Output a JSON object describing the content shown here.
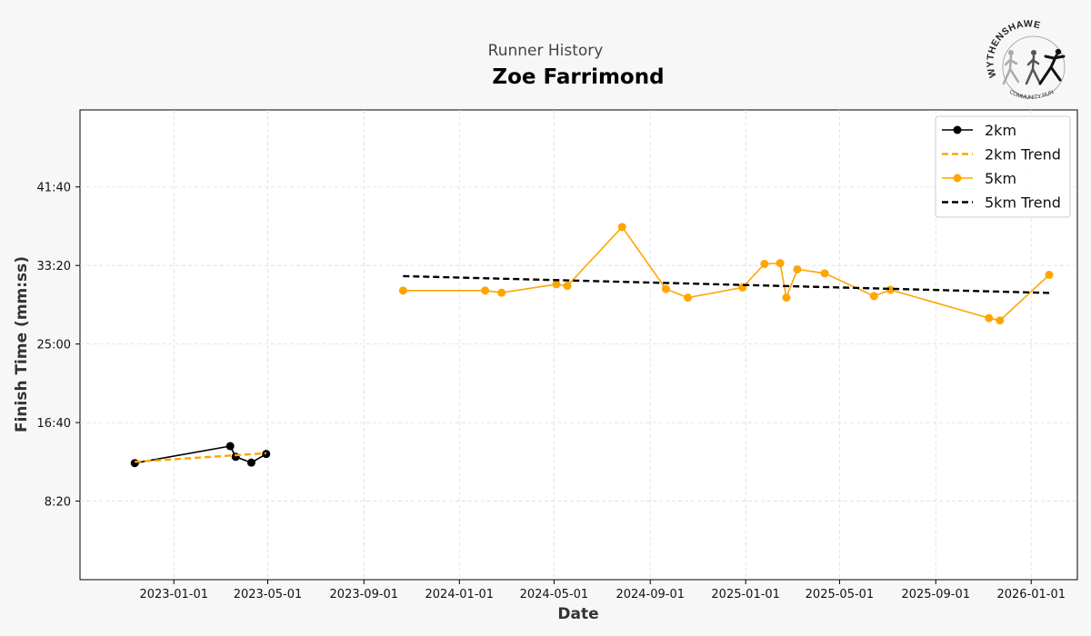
{
  "header": {
    "subtitle": "Runner History",
    "title": "Zoe Farrimond"
  },
  "logo": {
    "top_text": "WYTHENSHAWE",
    "bottom_text": "COMMUNITY RUN"
  },
  "colors": {
    "run_2km": "#000000",
    "run_5km": "#ffa500",
    "background": "#f7f7f7",
    "grid": "#dddddd"
  },
  "chart_data": {
    "type": "line",
    "title": "Zoe Farrimond",
    "subtitle": "Runner History",
    "xlabel": "Date",
    "ylabel": "Finish Time (mm:ss)",
    "x_ticks": [
      "2023-01-01",
      "2023-05-01",
      "2023-09-01",
      "2024-01-01",
      "2024-05-01",
      "2024-09-01",
      "2025-01-01",
      "2025-05-01",
      "2025-09-01",
      "2026-01-01"
    ],
    "y_ticks": [
      "8:20",
      "16:40",
      "25:00",
      "33:20",
      "41:40"
    ],
    "y_tick_seconds": [
      500,
      1000,
      1500,
      2000,
      2500
    ],
    "xlim": [
      "2022-09-03",
      "2026-03-01"
    ],
    "ylim_seconds": [
      0,
      2990
    ],
    "grid": true,
    "legend_position": "top-right",
    "series": [
      {
        "name": "2km",
        "style": "solid-markers",
        "color": "#000000",
        "points": [
          {
            "x": "2022-11-12",
            "y": "12:22"
          },
          {
            "x": "2023-03-14",
            "y": "14:10"
          },
          {
            "x": "2023-03-21",
            "y": "13:02"
          },
          {
            "x": "2023-04-10",
            "y": "12:25"
          },
          {
            "x": "2023-04-29",
            "y": "13:20"
          }
        ]
      },
      {
        "name": "2km Trend",
        "style": "dashed",
        "color": "#ffa500",
        "points": [
          {
            "x": "2022-11-12",
            "y": "12:30"
          },
          {
            "x": "2023-04-29",
            "y": "13:25"
          }
        ]
      },
      {
        "name": "5km",
        "style": "solid-markers",
        "color": "#ffa500",
        "points": [
          {
            "x": "2023-10-21",
            "y": "30:40"
          },
          {
            "x": "2024-02-03",
            "y": "30:40"
          },
          {
            "x": "2024-02-24",
            "y": "30:27"
          },
          {
            "x": "2024-05-04",
            "y": "31:20"
          },
          {
            "x": "2024-05-18",
            "y": "31:10"
          },
          {
            "x": "2024-07-27",
            "y": "37:25"
          },
          {
            "x": "2024-09-21",
            "y": "30:50"
          },
          {
            "x": "2024-10-19",
            "y": "29:55"
          },
          {
            "x": "2024-12-28",
            "y": "31:00"
          },
          {
            "x": "2025-01-25",
            "y": "33:30"
          },
          {
            "x": "2025-02-14",
            "y": "33:35"
          },
          {
            "x": "2025-02-22",
            "y": "29:55"
          },
          {
            "x": "2025-03-08",
            "y": "32:55"
          },
          {
            "x": "2025-04-12",
            "y": "32:30"
          },
          {
            "x": "2025-06-14",
            "y": "30:05"
          },
          {
            "x": "2025-07-05",
            "y": "30:45"
          },
          {
            "x": "2025-11-08",
            "y": "27:45"
          },
          {
            "x": "2025-11-22",
            "y": "27:30"
          },
          {
            "x": "2026-01-24",
            "y": "32:20"
          }
        ]
      },
      {
        "name": "5km Trend",
        "style": "dashed",
        "color": "#000000",
        "points": [
          {
            "x": "2023-10-21",
            "y": "32:12"
          },
          {
            "x": "2026-01-24",
            "y": "30:25"
          }
        ]
      }
    ]
  }
}
